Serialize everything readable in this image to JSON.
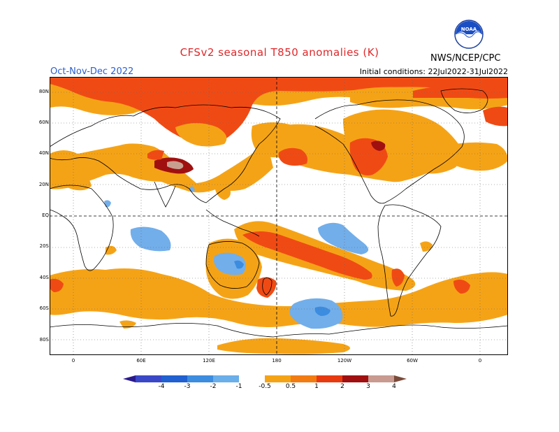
{
  "title": "CFSv2 seasonal T850 anomalies (K)",
  "season": "Oct-Nov-Dec 2022",
  "initial_conditions": "Initial conditions: 22Jul2022-31Jul2022",
  "agency": "NWS/NCEP/CPC",
  "logo_text": "NOAA",
  "lat_labels": [
    "80N",
    "60N",
    "40N",
    "20N",
    "EQ",
    "20S",
    "40S",
    "60S",
    "80S"
  ],
  "lon_labels": [
    "0",
    "60E",
    "120E",
    "180",
    "120W",
    "60W",
    "0"
  ],
  "colorbar": {
    "labels": [
      "-4",
      "-3",
      "-2",
      "-1",
      "-0.5",
      "0.5",
      "1",
      "2",
      "3",
      "4"
    ],
    "colors": [
      "#2a1a8c",
      "#3a48c8",
      "#2060d0",
      "#3c8ce0",
      "#6aaeea",
      "#ffffff",
      "#f5a316",
      "#f27c12",
      "#e83a10",
      "#a01010",
      "#c89a90",
      "#7a4a3a"
    ]
  },
  "colors": {
    "light_orange": "#f5a316",
    "red_orange": "#f04a14",
    "dark_red": "#a01010",
    "tan": "#c8a090",
    "light_blue": "#72aeea",
    "blue": "#3c8ce0"
  }
}
